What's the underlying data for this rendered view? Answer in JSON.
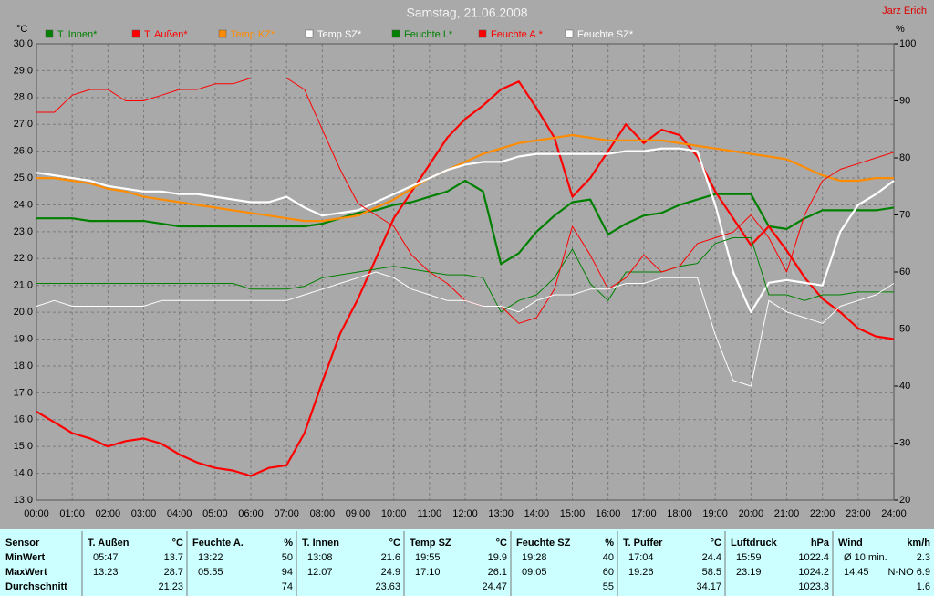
{
  "chart_data": {
    "type": "line",
    "title": "Samstag, 21.06.2008",
    "author": "Jarz Erich",
    "ylabel": "°C",
    "y2label": "%",
    "grid": true,
    "x": [
      0,
      0.5,
      1,
      1.5,
      2,
      2.5,
      3,
      3.5,
      4,
      4.5,
      5,
      5.5,
      6,
      6.5,
      7,
      7.5,
      8,
      8.5,
      9,
      9.5,
      10,
      10.5,
      11,
      11.5,
      12,
      12.5,
      13,
      13.5,
      14,
      14.5,
      15,
      15.5,
      16,
      16.5,
      17,
      17.5,
      18,
      18.5,
      19,
      19.5,
      20,
      20.5,
      21,
      21.5,
      22,
      22.5,
      23,
      23.5,
      24
    ],
    "xlim": [
      0,
      24
    ],
    "xticks": [
      {
        "value": 0,
        "label": "00:00"
      },
      {
        "value": 1,
        "label": "01:00"
      },
      {
        "value": 2,
        "label": "02:00"
      },
      {
        "value": 3,
        "label": "03:00"
      },
      {
        "value": 4,
        "label": "04:00"
      },
      {
        "value": 5,
        "label": "05:00"
      },
      {
        "value": 6,
        "label": "06:00"
      },
      {
        "value": 7,
        "label": "07:00"
      },
      {
        "value": 8,
        "label": "08:00"
      },
      {
        "value": 9,
        "label": "09:00"
      },
      {
        "value": 10,
        "label": "10:00"
      },
      {
        "value": 11,
        "label": "11:00"
      },
      {
        "value": 12,
        "label": "12:00"
      },
      {
        "value": 13,
        "label": "13:00"
      },
      {
        "value": 14,
        "label": "14:00"
      },
      {
        "value": 15,
        "label": "15:00"
      },
      {
        "value": 16,
        "label": "16:00"
      },
      {
        "value": 17,
        "label": "17:00"
      },
      {
        "value": 18,
        "label": "18:00"
      },
      {
        "value": 19,
        "label": "19:00"
      },
      {
        "value": 20,
        "label": "20:00"
      },
      {
        "value": 21,
        "label": "21:00"
      },
      {
        "value": 22,
        "label": "22:00"
      },
      {
        "value": 23,
        "label": "23:00"
      },
      {
        "value": 24,
        "label": "24:00"
      }
    ],
    "ylim": [
      13,
      30
    ],
    "yticks": [
      {
        "value": 13,
        "label": "13.0"
      },
      {
        "value": 14,
        "label": "14.0"
      },
      {
        "value": 15,
        "label": "15.0"
      },
      {
        "value": 16,
        "label": "16.0"
      },
      {
        "value": 17,
        "label": "17.0"
      },
      {
        "value": 18,
        "label": "18.0"
      },
      {
        "value": 19,
        "label": "19.0"
      },
      {
        "value": 20,
        "label": "20.0"
      },
      {
        "value": 21,
        "label": "21.0"
      },
      {
        "value": 22,
        "label": "22.0"
      },
      {
        "value": 23,
        "label": "23.0"
      },
      {
        "value": 24,
        "label": "24.0"
      },
      {
        "value": 25,
        "label": "25.0"
      },
      {
        "value": 26,
        "label": "26.0"
      },
      {
        "value": 27,
        "label": "27.0"
      },
      {
        "value": 28,
        "label": "28.0"
      },
      {
        "value": 29,
        "label": "29.0"
      },
      {
        "value": 30,
        "label": "30.0"
      }
    ],
    "y2lim": [
      20,
      100
    ],
    "y2ticks": [
      20,
      30,
      40,
      50,
      60,
      70,
      80,
      90,
      100
    ],
    "series": [
      {
        "name": "T. Innen*",
        "color": "#008000",
        "values": [
          23.5,
          23.5,
          23.5,
          23.4,
          23.4,
          23.4,
          23.4,
          23.3,
          23.2,
          23.2,
          23.2,
          23.2,
          23.2,
          23.2,
          23.2,
          23.2,
          23.3,
          23.5,
          23.7,
          23.8,
          24.0,
          24.1,
          24.3,
          24.5,
          24.9,
          24.5,
          21.8,
          22.2,
          23.0,
          23.6,
          24.1,
          24.2,
          22.9,
          23.3,
          23.6,
          23.7,
          24.0,
          24.2,
          24.4,
          24.4,
          24.4,
          23.2,
          23.1,
          23.5,
          23.8,
          23.8,
          23.8,
          23.8,
          23.9
        ]
      },
      {
        "name": "T. Außen*",
        "color": "#ff0000",
        "values": [
          16.3,
          15.9,
          15.5,
          15.3,
          15.0,
          15.2,
          15.3,
          15.1,
          14.7,
          14.4,
          14.2,
          14.1,
          13.9,
          14.2,
          14.3,
          15.5,
          17.4,
          19.2,
          20.5,
          22.0,
          23.5,
          24.5,
          25.5,
          26.5,
          27.2,
          27.7,
          28.3,
          28.6,
          27.6,
          26.5,
          24.3,
          25.0,
          26.0,
          27.0,
          26.3,
          26.8,
          26.6,
          25.8,
          24.5,
          23.5,
          22.5,
          23.2,
          22.3,
          21.3,
          20.5,
          20.0,
          19.4,
          19.1,
          19.0
        ]
      },
      {
        "name": "Temp KZ*",
        "color": "#ff8c00",
        "values": [
          25.0,
          25.0,
          24.9,
          24.8,
          24.6,
          24.5,
          24.3,
          24.2,
          24.1,
          24.0,
          23.9,
          23.8,
          23.7,
          23.6,
          23.5,
          23.4,
          23.4,
          23.5,
          23.6,
          23.9,
          24.2,
          24.6,
          25.0,
          25.3,
          25.6,
          25.9,
          26.1,
          26.3,
          26.4,
          26.5,
          26.6,
          26.5,
          26.4,
          26.4,
          26.4,
          26.4,
          26.3,
          26.2,
          26.1,
          26.0,
          25.9,
          25.8,
          25.7,
          25.4,
          25.1,
          24.9,
          24.9,
          25.0,
          25.0
        ]
      },
      {
        "name": "Temp SZ*",
        "color": "#ffffff",
        "values": [
          25.2,
          25.1,
          25.0,
          24.9,
          24.7,
          24.6,
          24.5,
          24.5,
          24.4,
          24.4,
          24.3,
          24.2,
          24.1,
          24.1,
          24.3,
          23.9,
          23.6,
          23.7,
          23.8,
          24.1,
          24.4,
          24.7,
          25.0,
          25.3,
          25.5,
          25.6,
          25.6,
          25.8,
          25.9,
          25.9,
          25.9,
          25.9,
          25.9,
          26.0,
          26.0,
          26.1,
          26.1,
          26.0,
          24.0,
          21.5,
          20.0,
          21.1,
          21.2,
          21.1,
          21.0,
          23.0,
          24.0,
          24.4,
          24.9
        ]
      },
      {
        "name": "Feuchte I.*",
        "color": "#008000",
        "axis": "y2",
        "values": [
          58,
          58,
          58,
          58,
          58,
          58,
          58,
          58,
          58,
          58,
          58,
          58,
          57,
          57,
          57,
          57.5,
          59,
          59.5,
          60,
          60.5,
          61,
          60.5,
          60,
          59.5,
          59.5,
          59,
          53,
          55,
          56,
          59,
          64,
          58,
          55,
          60,
          60,
          60,
          61,
          61.5,
          65,
          66,
          66,
          56,
          56,
          55,
          56,
          56,
          56.5,
          56.5,
          56.5
        ]
      },
      {
        "name": "Feuchte A.*",
        "color": "#ff0000",
        "axis": "y2",
        "values": [
          88,
          88,
          91,
          92,
          92,
          90,
          90,
          91,
          92,
          92,
          93,
          93,
          94,
          94,
          94,
          92,
          85,
          78,
          72,
          70,
          68,
          63,
          60,
          58,
          55,
          54,
          54,
          51,
          52,
          57,
          68,
          63,
          57,
          59,
          63,
          60,
          61,
          65,
          66,
          67,
          70,
          66,
          60,
          70,
          76,
          78,
          79,
          80,
          81
        ]
      },
      {
        "name": "Feuchte SZ*",
        "color": "#ffffff",
        "axis": "y2",
        "values": [
          54,
          55,
          54,
          54,
          54,
          54,
          54,
          55,
          55,
          55,
          55,
          55,
          55,
          55,
          55,
          56,
          57,
          58,
          59,
          60,
          59,
          57,
          56,
          55,
          55,
          54,
          54,
          53,
          55,
          56,
          56,
          57,
          57,
          58,
          58,
          59,
          59,
          59,
          49,
          41,
          40,
          55,
          53,
          52,
          51,
          54,
          55,
          56,
          58
        ]
      }
    ]
  },
  "table": {
    "header": "Sensor",
    "columns": [
      {
        "name": "T. Außen",
        "unit": "°C"
      },
      {
        "name": "Feuchte A.",
        "unit": "%"
      },
      {
        "name": "T. Innen",
        "unit": "°C"
      },
      {
        "name": "Temp SZ",
        "unit": "°C"
      },
      {
        "name": "Feuchte SZ",
        "unit": "%"
      },
      {
        "name": "T. Puffer",
        "unit": "°C"
      },
      {
        "name": "Luftdruck",
        "unit": "hPa"
      },
      {
        "name": "Wind",
        "unit": "km/h"
      }
    ],
    "rows": [
      {
        "label": "MinWert",
        "cells": [
          {
            "time": "05:47",
            "value": 13.7
          },
          {
            "time": "13:22",
            "value": 50
          },
          {
            "time": "13:08",
            "value": 21.6
          },
          {
            "time": "19:55",
            "value": 19.9
          },
          {
            "time": "19:28",
            "value": 40
          },
          {
            "time": "17:04",
            "value": 24.4
          },
          {
            "time": "15:59",
            "value": 1022.4
          },
          {
            "time": "Ø 10 min.",
            "value": 2.3
          }
        ]
      },
      {
        "label": "MaxWert",
        "cells": [
          {
            "time": "13:23",
            "value": 28.7
          },
          {
            "time": "05:55",
            "value": 94
          },
          {
            "time": "12:07",
            "value": 24.9
          },
          {
            "time": "17:10",
            "value": 26.1
          },
          {
            "time": "09:05",
            "value": 60
          },
          {
            "time": "19:26",
            "value": 58.5
          },
          {
            "time": "23:19",
            "value": 1024.2
          },
          {
            "time": "14:45",
            "value": "N-NO 6.9"
          }
        ]
      },
      {
        "label": "Durchschnitt",
        "cells": [
          {
            "value": 21.23
          },
          {
            "value": 74
          },
          {
            "value": 23.63
          },
          {
            "value": 24.47
          },
          {
            "value": 55
          },
          {
            "value": 34.17
          },
          {
            "value": 1023.3
          },
          {
            "value": 1.6
          }
        ]
      }
    ]
  }
}
